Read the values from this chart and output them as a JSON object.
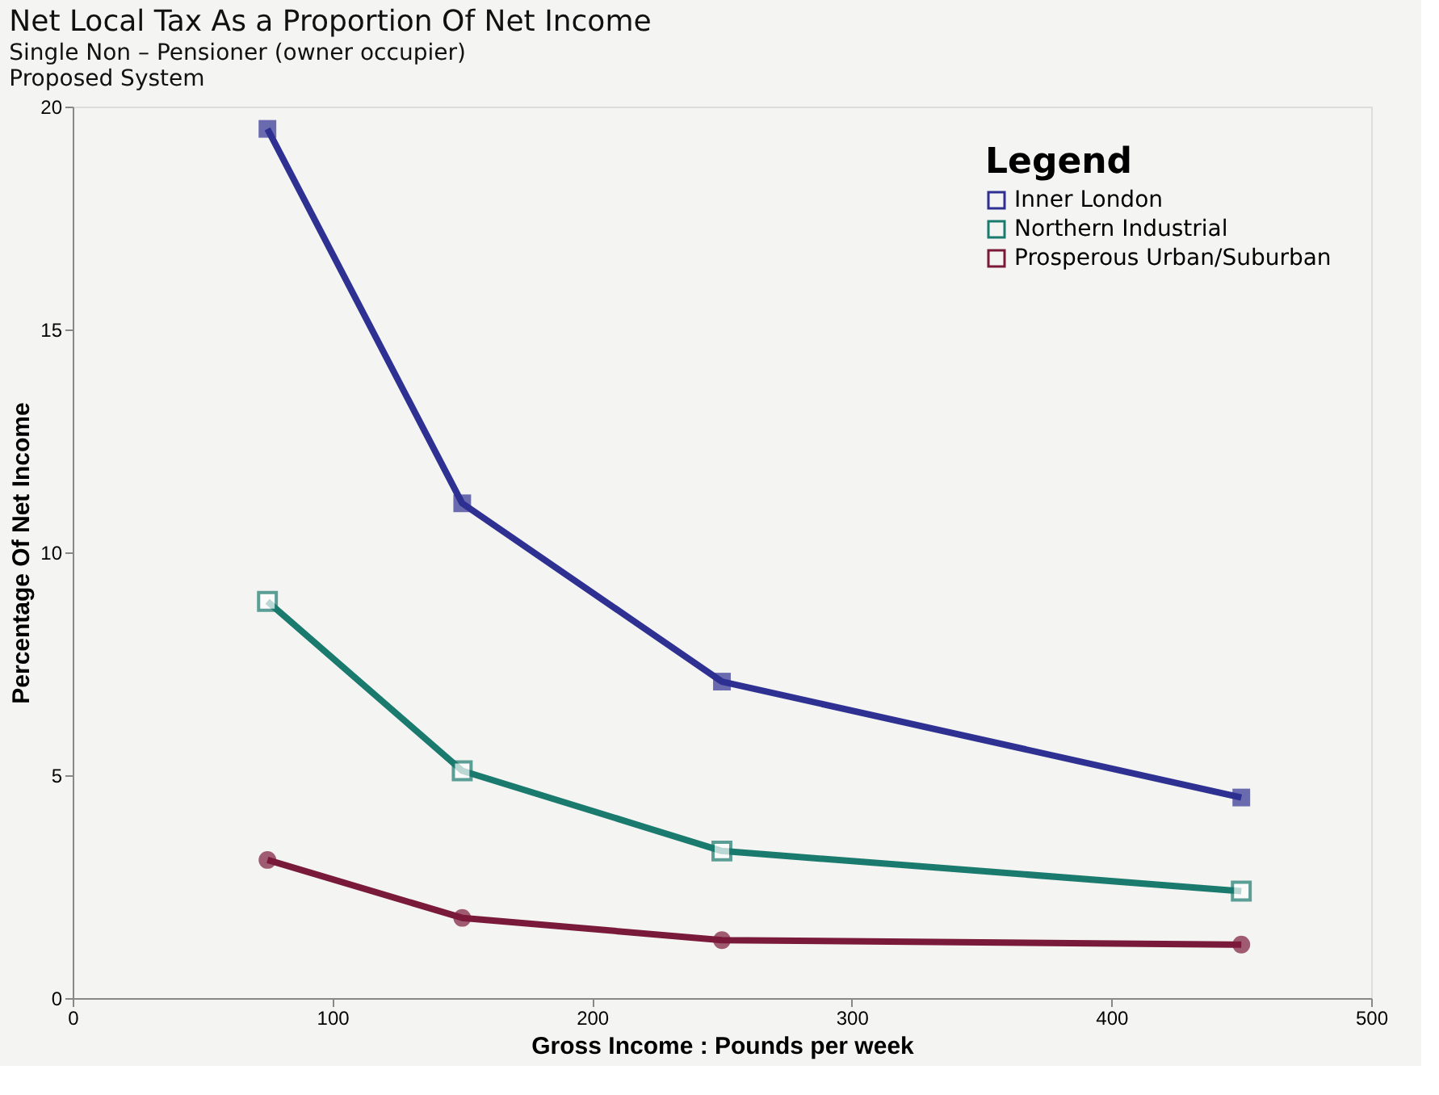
{
  "chart_data": {
    "type": "line",
    "title": "Net Local Tax As a Proportion Of Net Income",
    "subtitle": "Single Non – Pensioner (owner occupier)\nProposed System",
    "xlabel": "Gross Income : Pounds per week",
    "ylabel": "Percentage Of Net Income",
    "legend_title": "Legend",
    "x": [
      75,
      150,
      250,
      450
    ],
    "series": [
      {
        "name": "Inner London",
        "color": "#2e3192",
        "marker": "square",
        "values": [
          19.5,
          11.1,
          7.1,
          4.5
        ]
      },
      {
        "name": "Northern Industrial",
        "color": "#1a7a6e",
        "marker": "square",
        "values": [
          8.9,
          5.1,
          3.3,
          2.4
        ]
      },
      {
        "name": "Prosperous Urban/Suburban",
        "color": "#7a1a3a",
        "marker": "circle",
        "values": [
          3.1,
          1.8,
          1.3,
          1.2
        ]
      }
    ],
    "xlim": [
      0,
      500
    ],
    "xticks": [
      0,
      100,
      200,
      300,
      400,
      500
    ],
    "ylim": [
      0,
      20
    ],
    "yticks": [
      0,
      5,
      10,
      15,
      20
    ],
    "grid": false,
    "legend": "top right",
    "line_style": "solid"
  }
}
